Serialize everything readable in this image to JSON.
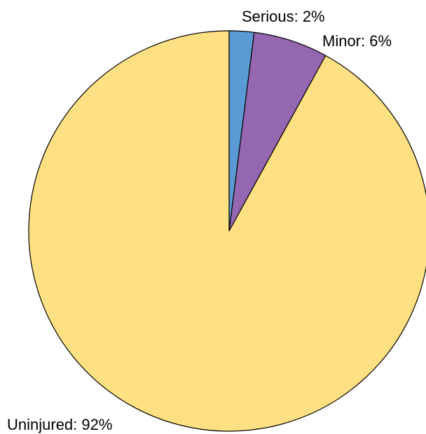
{
  "chart_data": {
    "type": "pie",
    "title": "",
    "start_angle": "top",
    "direction": "clockwise",
    "slices": [
      {
        "label": "Serious",
        "value": 2,
        "display": "Serious: 2%",
        "color": "#5b9bd5"
      },
      {
        "label": "Minor",
        "value": 6,
        "display": "Minor: 6%",
        "color": "#9467b0"
      },
      {
        "label": "Uninjured",
        "value": 92,
        "display": "Uninjured: 92%",
        "color": "#ffe082"
      }
    ],
    "edge_color": "#000000"
  }
}
